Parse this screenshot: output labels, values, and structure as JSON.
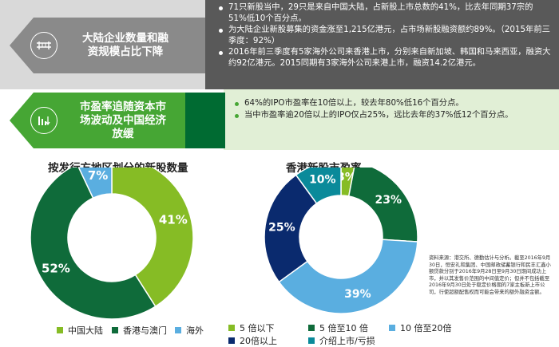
{
  "top_section": {
    "row1": {
      "title_line1": "大陆企业数量和融",
      "title_line2": "资规模占比下降",
      "bullets": [
        "71只新股当中，29只是来自中国大陆，占新股上市总数的41%，比去年同期37宗的51%低10个百分点。",
        "为大陆企业新股募集的资金涨至1,215亿港元，占市场新股融资额约89%。（2015年前三季度：92%）",
        "2016年前三季度有5家海外公司来香港上市，分别来自新加坡、韩国和马来西亚，融资大约92亿港元。2015同期有3家海外公司来港上市，融资14.2亿港元。"
      ],
      "icon": "bridge-icon"
    },
    "row2": {
      "title_line1": "市盈率追随资本市",
      "title_line2": "场波动及中国经济",
      "title_line3": "放缓",
      "bullets": [
        "64%的IPO市盈率在10倍以上，较去年80%低16个百分点。",
        "当中市盈率逾20倍以上的IPO仅占25%，远比去年的37%低12个百分点。"
      ],
      "icon": "bar-chart-down-icon"
    }
  },
  "colors": {
    "gray_light": "#d9d9d9",
    "gray_mid": "#8a8a8a",
    "gray_dark": "#595959",
    "green_bright": "#46a634",
    "green_dark": "#006b32",
    "green_light": "#e1efd6",
    "navy": "#0a2a6e",
    "light_blue": "#5aaee0",
    "teal": "#0a8a9a",
    "lime": "#86bc25"
  },
  "chart_data": [
    {
      "type": "pie",
      "title": "按发行方地区划分的新股数量",
      "categories": [
        "中国大陆",
        "香港与澳门",
        "海外"
      ],
      "values": [
        41,
        52,
        7
      ],
      "labels": [
        "41%",
        "52%",
        "7%"
      ],
      "colors": [
        "#86bc25",
        "#0f6b3a",
        "#5aaee0"
      ],
      "legend_position": "bottom"
    },
    {
      "type": "pie",
      "title": "香港新股市盈率",
      "categories": [
        "5 倍以下",
        "5 倍至10 倍",
        "10 倍至20倍",
        "20倍以上",
        "介绍上市/亏损"
      ],
      "values": [
        3,
        23,
        39,
        25,
        10
      ],
      "labels": [
        "3%",
        "23%",
        "39%",
        "25%",
        "10%"
      ],
      "colors": [
        "#86bc25",
        "#0f6b3a",
        "#5aaee0",
        "#0a2a6e",
        "#0a8a9a"
      ],
      "legend_position": "bottom"
    }
  ],
  "source_note": "资料来源：港交所、德勤估计与分析。截至2016年9月30日，恒安礼和集团、中国邮政储蓄银行和民丰汇鑫小额贷款分别于2016年9月28日至9月30日期间成功上市，并以其发售价范围的中间值定价；但并不包括截至2016年9月30日处于稳定价格期的7家主板新上市公司，行使超额配售权而可能会带来的额外融资金额。"
}
